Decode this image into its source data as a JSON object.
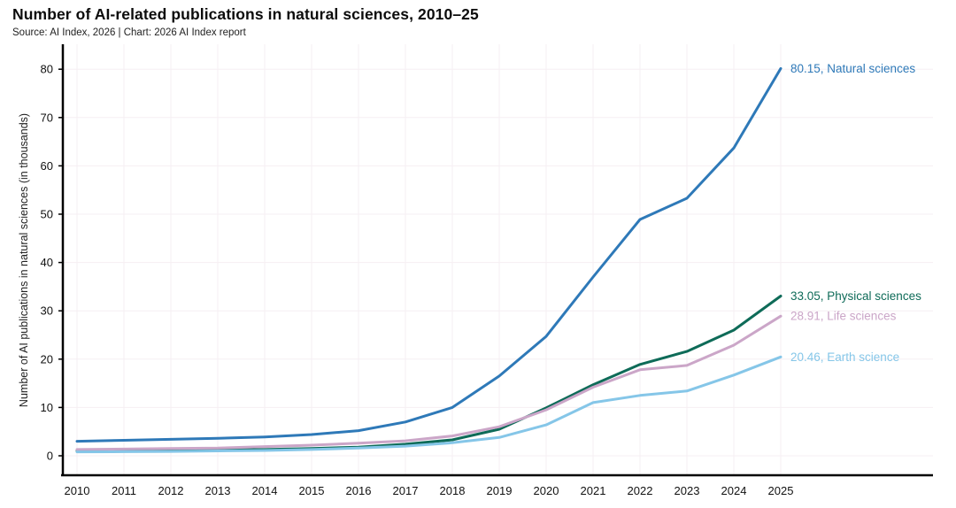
{
  "title": "Number of AI-related publications in natural sciences, 2010–25",
  "source": "Source: AI Index, 2026 | Chart: 2026 AI Index report",
  "colors": {
    "natural_sciences": "#2e79b8",
    "physical_sciences": "#0e6b58",
    "life_sciences": "#cba6c8",
    "earth_science": "#85c6e8",
    "axis": "#000000",
    "gridline": "#f6eff3",
    "tick_text": "#111111"
  },
  "chart_data": {
    "type": "line",
    "title": "Number of AI-related publications in natural sciences, 2010–25",
    "subtitle": "Source: AI Index, 2026 | Chart: 2026 AI Index report",
    "xlabel": "",
    "ylabel": "Number of AI publications in natural sciences (in thousands)",
    "x": [
      2010,
      2011,
      2012,
      2013,
      2014,
      2015,
      2016,
      2017,
      2018,
      2019,
      2020,
      2021,
      2022,
      2023,
      2024,
      2025
    ],
    "xlim": [
      2010,
      2025
    ],
    "ylim": [
      0,
      80
    ],
    "yticks": [
      0,
      10,
      20,
      30,
      40,
      50,
      60,
      70,
      80
    ],
    "grid": true,
    "legend_position": "end-of-line-labels-right",
    "series": [
      {
        "name": "Natural sciences",
        "color": "#2e79b8",
        "end_label": "80.15, Natural sciences",
        "end_value": 80.15,
        "values": [
          3.0,
          3.2,
          3.4,
          3.6,
          3.9,
          4.4,
          5.2,
          7.0,
          10.0,
          16.5,
          24.7,
          37.0,
          48.9,
          53.3,
          63.7,
          80.15
        ]
      },
      {
        "name": "Physical sciences",
        "color": "#0e6b58",
        "end_label": "33.05, Physical sciences",
        "end_value": 33.05,
        "values": [
          1.0,
          1.05,
          1.1,
          1.2,
          1.3,
          1.5,
          1.8,
          2.4,
          3.3,
          5.5,
          9.9,
          14.7,
          18.9,
          21.6,
          26.0,
          33.05
        ]
      },
      {
        "name": "Life sciences",
        "color": "#cba6c8",
        "end_label": "28.91, Life sciences",
        "end_value": 28.91,
        "values": [
          1.3,
          1.4,
          1.5,
          1.6,
          1.9,
          2.2,
          2.6,
          3.1,
          4.1,
          6.0,
          9.5,
          14.2,
          17.8,
          18.7,
          22.9,
          28.91
        ]
      },
      {
        "name": "Earth science",
        "color": "#85c6e8",
        "end_label": "20.46, Earth science",
        "end_value": 20.46,
        "values": [
          0.8,
          0.85,
          0.9,
          1.0,
          1.1,
          1.3,
          1.6,
          2.0,
          2.7,
          3.8,
          6.4,
          11.0,
          12.5,
          13.4,
          16.7,
          20.46
        ]
      }
    ]
  }
}
